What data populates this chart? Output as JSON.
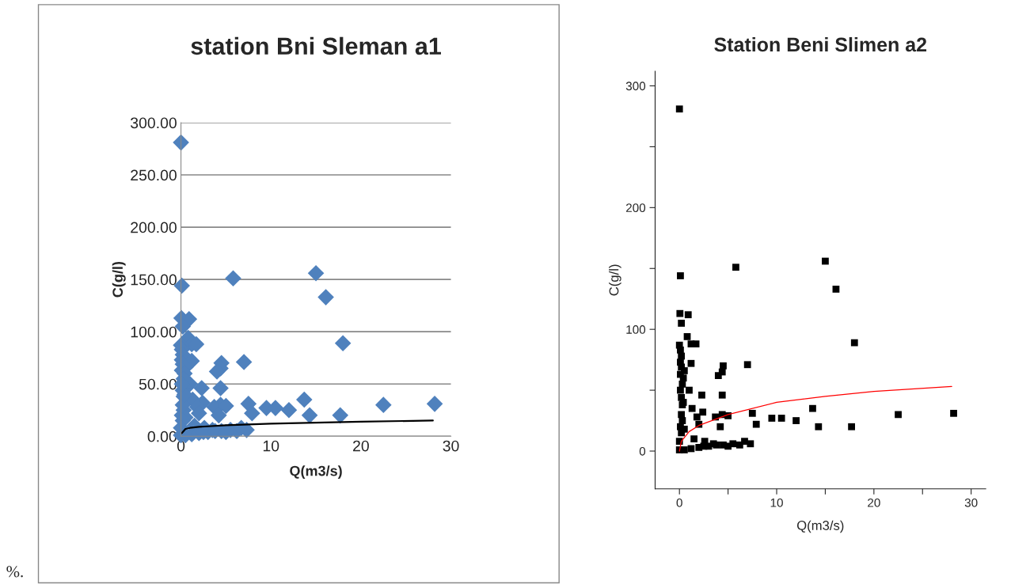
{
  "chart_data": [
    {
      "type": "scatter",
      "title": "station Bni Sleman a1",
      "xlabel": "Q(m3/s)",
      "ylabel": "C(g/l)",
      "xlim": [
        0,
        30
      ],
      "xticks": [
        0,
        10,
        20,
        30
      ],
      "ylim": [
        0,
        300
      ],
      "yticks": [
        {
          "value": 0,
          "label": "0.00"
        },
        {
          "value": 50,
          "label": "50.00"
        },
        {
          "value": 100,
          "label": "100.00"
        },
        {
          "value": 150,
          "label": "150.00"
        },
        {
          "value": 200,
          "label": "200.00"
        },
        {
          "value": 250,
          "label": "250.00"
        },
        {
          "value": 300,
          "label": "300.00"
        }
      ],
      "grid": "y",
      "marker": "diamond",
      "annotations": [
        "%."
      ],
      "series": [
        {
          "color": "#4f81bd",
          "x": [
            0,
            0.1,
            5.8,
            15.0,
            16.1,
            18.0,
            0.05,
            0.9,
            0.2,
            0.8,
            1.2,
            1.7,
            0,
            0.1,
            0.2,
            0.1,
            0.2,
            1.2,
            0.5,
            0.1,
            4.5,
            4.4,
            4.0,
            7.0,
            0.4,
            1.0,
            0.3,
            4.4,
            2.3,
            0.2,
            0.3,
            1.3,
            2.4,
            4.4,
            1.8,
            3.7,
            5.0,
            7.5,
            7.9,
            9.5,
            10.5,
            12.0,
            13.7,
            14.3,
            17.7,
            22.5,
            28.2,
            4.2,
            2.0,
            0.3,
            0.1,
            0.5,
            0.2,
            1.5,
            2.6,
            3.5,
            4.5,
            5.5,
            6.2,
            6.7,
            7.3,
            0,
            0.5,
            1.2,
            2.0,
            3.0,
            2.5,
            3.8,
            5.0,
            0.2,
            0.4,
            0.1,
            0
          ],
          "values": [
            281,
            144,
            151,
            156,
            133,
            89,
            113,
            112,
            105,
            94,
            88,
            88,
            87,
            83,
            78,
            73,
            69,
            72,
            66,
            63,
            70,
            65,
            62,
            71,
            60,
            50,
            55,
            46,
            46,
            44,
            38,
            35,
            32,
            30,
            28,
            28,
            29,
            31,
            22,
            27,
            27,
            25,
            35,
            20,
            20,
            30,
            31,
            20,
            22,
            25,
            20,
            18,
            15,
            10,
            8,
            6,
            5,
            6,
            5,
            8,
            6,
            1,
            1,
            2,
            3,
            4,
            4,
            5,
            4,
            30,
            40,
            50,
            8
          ]
        },
        {
          "type": "line",
          "color": "#000000",
          "marker": "none",
          "x": [
            0.1,
            0.5,
            1,
            2,
            5,
            10,
            20,
            28
          ],
          "values": [
            3,
            7,
            8,
            9,
            10.5,
            12,
            14,
            15
          ]
        }
      ]
    },
    {
      "type": "scatter",
      "title": "Station Beni Slimen a2",
      "xlabel": "Q(m3/s)",
      "ylabel": "C(g/l)",
      "xlim": [
        -2.5,
        31.5
      ],
      "xticks": [
        0,
        {
          "value": 5,
          "label": null
        },
        10,
        {
          "value": 15,
          "label": null
        },
        20,
        {
          "value": 25,
          "label": null
        },
        30
      ],
      "ylim": [
        -31,
        312
      ],
      "yticks": [
        0,
        {
          "value": 50,
          "label": null
        },
        100,
        {
          "value": 150,
          "label": null
        },
        200,
        {
          "value": 250,
          "label": null
        },
        300
      ],
      "grid": false,
      "marker": "square",
      "series": [
        {
          "color": "#000000",
          "x": [
            0,
            0.1,
            5.8,
            15.0,
            16.1,
            18.0,
            0.05,
            0.9,
            0.2,
            0.8,
            1.2,
            1.7,
            0,
            0.1,
            0.2,
            0.1,
            0.2,
            1.2,
            0.5,
            0.1,
            4.5,
            4.4,
            4.0,
            7.0,
            0.4,
            1.0,
            0.3,
            4.4,
            2.3,
            0.2,
            0.3,
            1.3,
            2.4,
            4.4,
            1.8,
            3.7,
            5.0,
            7.5,
            7.9,
            9.5,
            10.5,
            12.0,
            13.7,
            14.3,
            17.7,
            22.5,
            28.2,
            4.2,
            2.0,
            0.3,
            0.1,
            0.5,
            0.2,
            1.5,
            2.6,
            3.5,
            4.5,
            5.5,
            6.2,
            6.7,
            7.3,
            0,
            0.5,
            1.2,
            2.0,
            3.0,
            2.5,
            3.8,
            5.0,
            0.2,
            0.4,
            0.1,
            0
          ],
          "values": [
            281,
            144,
            151,
            156,
            133,
            89,
            113,
            112,
            105,
            94,
            88,
            88,
            87,
            83,
            78,
            73,
            69,
            72,
            66,
            63,
            70,
            65,
            62,
            71,
            60,
            50,
            55,
            46,
            46,
            44,
            38,
            35,
            32,
            30,
            28,
            28,
            29,
            31,
            22,
            27,
            27,
            25,
            35,
            20,
            20,
            30,
            31,
            20,
            22,
            25,
            20,
            18,
            15,
            10,
            8,
            6,
            5,
            6,
            5,
            8,
            6,
            1,
            1,
            2,
            3,
            4,
            4,
            5,
            4,
            30,
            40,
            50,
            8
          ]
        },
        {
          "type": "line",
          "color": "#ff0000",
          "marker": "none",
          "x": [
            0,
            0.2,
            1,
            2,
            5,
            10,
            15,
            20,
            28
          ],
          "values": [
            0,
            8,
            16,
            21,
            30,
            40,
            45,
            49,
            53
          ]
        }
      ]
    }
  ]
}
